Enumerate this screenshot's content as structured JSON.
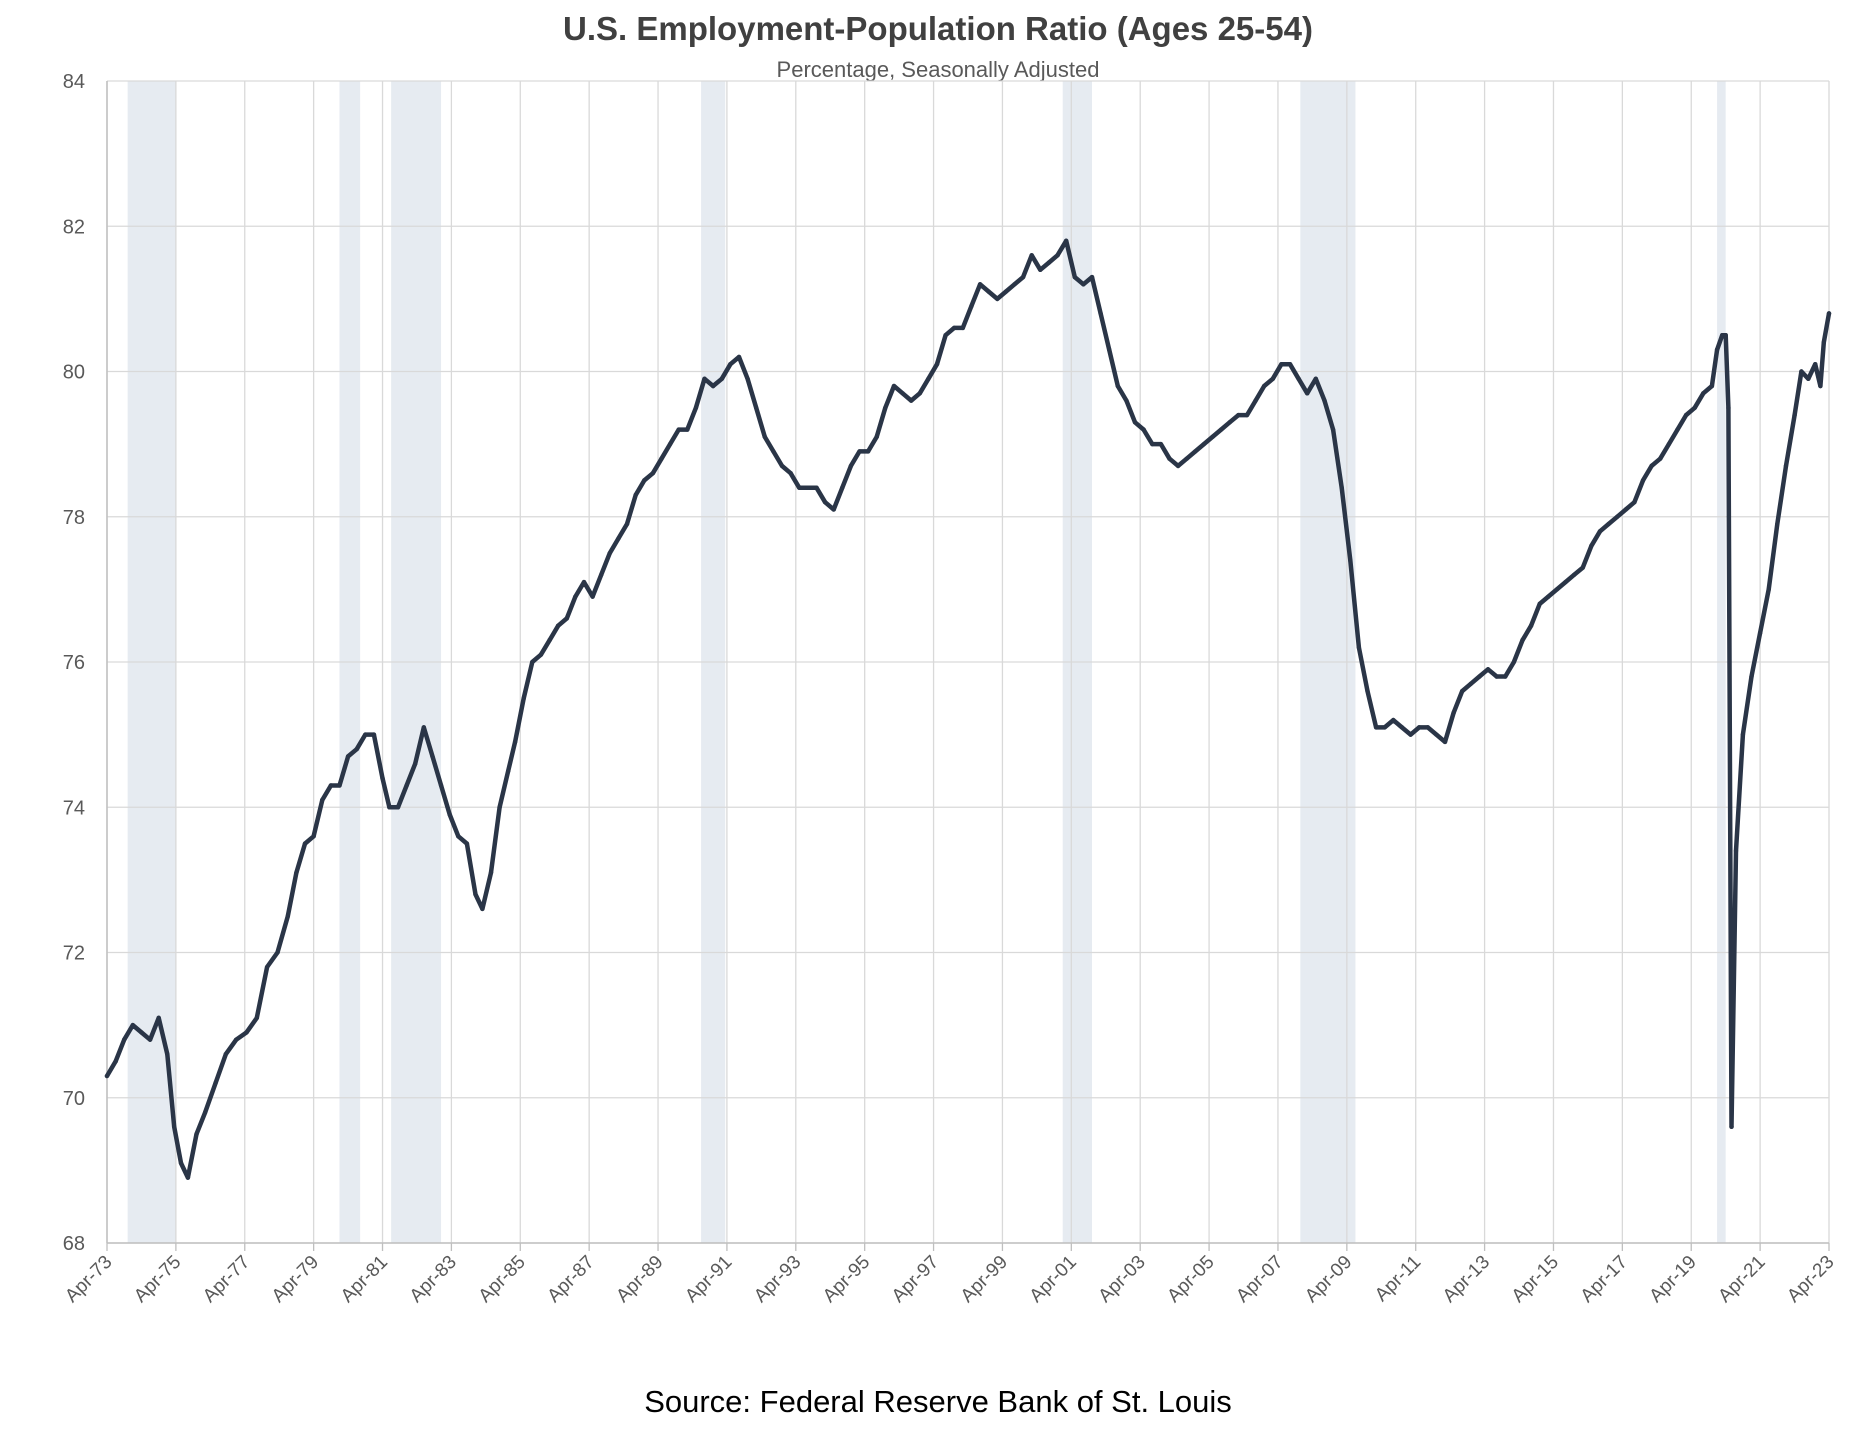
{
  "chart_data": {
    "type": "line",
    "title": "U.S. Employment-Population Ratio (Ages 25-54)",
    "subtitle": "Percentage, Seasonally Adjusted",
    "source": "Source: Federal Reserve Bank of St. Louis",
    "xlabel": "",
    "ylabel": "",
    "xlim": [
      1973.25,
      2023.25
    ],
    "ylim": [
      68,
      84
    ],
    "y_ticks": [
      68,
      70,
      72,
      74,
      76,
      78,
      80,
      82,
      84
    ],
    "x_ticks": [
      {
        "label": "Apr-73",
        "x": 1973.25
      },
      {
        "label": "Apr-75",
        "x": 1975.25
      },
      {
        "label": "Apr-77",
        "x": 1977.25
      },
      {
        "label": "Apr-79",
        "x": 1979.25
      },
      {
        "label": "Apr-81",
        "x": 1981.25
      },
      {
        "label": "Apr-83",
        "x": 1983.25
      },
      {
        "label": "Apr-85",
        "x": 1985.25
      },
      {
        "label": "Apr-87",
        "x": 1987.25
      },
      {
        "label": "Apr-89",
        "x": 1989.25
      },
      {
        "label": "Apr-91",
        "x": 1991.25
      },
      {
        "label": "Apr-93",
        "x": 1993.25
      },
      {
        "label": "Apr-95",
        "x": 1995.25
      },
      {
        "label": "Apr-97",
        "x": 1997.25
      },
      {
        "label": "Apr-99",
        "x": 1999.25
      },
      {
        "label": "Apr-01",
        "x": 2001.25
      },
      {
        "label": "Apr-03",
        "x": 2003.25
      },
      {
        "label": "Apr-05",
        "x": 2005.25
      },
      {
        "label": "Apr-07",
        "x": 2007.25
      },
      {
        "label": "Apr-09",
        "x": 2009.25
      },
      {
        "label": "Apr-11",
        "x": 2011.25
      },
      {
        "label": "Apr-13",
        "x": 2013.25
      },
      {
        "label": "Apr-15",
        "x": 2015.25
      },
      {
        "label": "Apr-17",
        "x": 2017.25
      },
      {
        "label": "Apr-19",
        "x": 2019.25
      },
      {
        "label": "Apr-21",
        "x": 2021.25
      },
      {
        "label": "Apr-23",
        "x": 2023.25
      }
    ],
    "grid": true,
    "recessions": [
      [
        1973.85,
        1975.25
      ],
      [
        1980.0,
        1980.6
      ],
      [
        1981.5,
        1982.95
      ],
      [
        1990.5,
        1991.2
      ],
      [
        2001.0,
        2001.85
      ],
      [
        2007.9,
        2009.5
      ],
      [
        2020.0,
        2020.25
      ]
    ],
    "series": [
      {
        "name": "Employment-Population Ratio (25-54)",
        "color": "#2a3547",
        "points": [
          [
            1973.25,
            70.3
          ],
          [
            1973.5,
            70.5
          ],
          [
            1973.75,
            70.8
          ],
          [
            1974.0,
            71.0
          ],
          [
            1974.25,
            70.9
          ],
          [
            1974.5,
            70.8
          ],
          [
            1974.75,
            71.1
          ],
          [
            1975.0,
            70.6
          ],
          [
            1975.2,
            69.6
          ],
          [
            1975.4,
            69.1
          ],
          [
            1975.6,
            68.9
          ],
          [
            1975.85,
            69.5
          ],
          [
            1976.1,
            69.8
          ],
          [
            1976.4,
            70.2
          ],
          [
            1976.7,
            70.6
          ],
          [
            1977.0,
            70.8
          ],
          [
            1977.3,
            70.9
          ],
          [
            1977.6,
            71.1
          ],
          [
            1977.9,
            71.8
          ],
          [
            1978.2,
            72.0
          ],
          [
            1978.5,
            72.5
          ],
          [
            1978.75,
            73.1
          ],
          [
            1979.0,
            73.5
          ],
          [
            1979.25,
            73.6
          ],
          [
            1979.5,
            74.1
          ],
          [
            1979.75,
            74.3
          ],
          [
            1980.0,
            74.3
          ],
          [
            1980.25,
            74.7
          ],
          [
            1980.5,
            74.8
          ],
          [
            1980.75,
            75.0
          ],
          [
            1981.0,
            75.0
          ],
          [
            1981.25,
            74.4
          ],
          [
            1981.45,
            74.0
          ],
          [
            1981.7,
            74.0
          ],
          [
            1981.95,
            74.3
          ],
          [
            1982.2,
            74.6
          ],
          [
            1982.45,
            75.1
          ],
          [
            1982.7,
            74.7
          ],
          [
            1982.95,
            74.3
          ],
          [
            1983.2,
            73.9
          ],
          [
            1983.45,
            73.6
          ],
          [
            1983.7,
            73.5
          ],
          [
            1983.95,
            72.8
          ],
          [
            1984.15,
            72.6
          ],
          [
            1984.4,
            73.1
          ],
          [
            1984.65,
            74.0
          ],
          [
            1984.9,
            74.5
          ],
          [
            1985.1,
            74.9
          ],
          [
            1985.35,
            75.5
          ],
          [
            1985.6,
            76.0
          ],
          [
            1985.85,
            76.1
          ],
          [
            1986.1,
            76.3
          ],
          [
            1986.35,
            76.5
          ],
          [
            1986.6,
            76.6
          ],
          [
            1986.85,
            76.9
          ],
          [
            1987.1,
            77.1
          ],
          [
            1987.35,
            76.9
          ],
          [
            1987.6,
            77.2
          ],
          [
            1987.85,
            77.5
          ],
          [
            1988.1,
            77.7
          ],
          [
            1988.35,
            77.9
          ],
          [
            1988.6,
            78.3
          ],
          [
            1988.85,
            78.5
          ],
          [
            1989.1,
            78.6
          ],
          [
            1989.35,
            78.8
          ],
          [
            1989.6,
            79.0
          ],
          [
            1989.85,
            79.2
          ],
          [
            1990.1,
            79.2
          ],
          [
            1990.35,
            79.5
          ],
          [
            1990.6,
            79.9
          ],
          [
            1990.85,
            79.8
          ],
          [
            1991.1,
            79.9
          ],
          [
            1991.35,
            80.1
          ],
          [
            1991.6,
            80.2
          ],
          [
            1991.85,
            79.9
          ],
          [
            1992.1,
            79.5
          ],
          [
            1992.35,
            79.1
          ],
          [
            1992.6,
            78.9
          ],
          [
            1992.85,
            78.7
          ],
          [
            1993.1,
            78.6
          ],
          [
            1993.35,
            78.4
          ],
          [
            1993.6,
            78.4
          ],
          [
            1993.85,
            78.4
          ],
          [
            1994.1,
            78.2
          ],
          [
            1994.35,
            78.1
          ],
          [
            1994.6,
            78.4
          ],
          [
            1994.85,
            78.7
          ],
          [
            1995.1,
            78.9
          ],
          [
            1995.35,
            78.9
          ],
          [
            1995.6,
            79.1
          ],
          [
            1995.85,
            79.5
          ],
          [
            1996.1,
            79.8
          ],
          [
            1996.35,
            79.7
          ],
          [
            1996.6,
            79.6
          ],
          [
            1996.85,
            79.7
          ],
          [
            1997.1,
            79.9
          ],
          [
            1997.35,
            80.1
          ],
          [
            1997.6,
            80.5
          ],
          [
            1997.85,
            80.6
          ],
          [
            1998.1,
            80.6
          ],
          [
            1998.35,
            80.9
          ],
          [
            1998.6,
            81.2
          ],
          [
            1998.85,
            81.1
          ],
          [
            1999.1,
            81.0
          ],
          [
            1999.35,
            81.1
          ],
          [
            1999.6,
            81.2
          ],
          [
            1999.85,
            81.3
          ],
          [
            2000.1,
            81.6
          ],
          [
            2000.35,
            81.4
          ],
          [
            2000.6,
            81.5
          ],
          [
            2000.85,
            81.6
          ],
          [
            2001.1,
            81.8
          ],
          [
            2001.35,
            81.3
          ],
          [
            2001.6,
            81.2
          ],
          [
            2001.85,
            81.3
          ],
          [
            2002.1,
            80.8
          ],
          [
            2002.35,
            80.3
          ],
          [
            2002.6,
            79.8
          ],
          [
            2002.85,
            79.6
          ],
          [
            2003.1,
            79.3
          ],
          [
            2003.35,
            79.2
          ],
          [
            2003.6,
            79.0
          ],
          [
            2003.85,
            79.0
          ],
          [
            2004.1,
            78.8
          ],
          [
            2004.35,
            78.7
          ],
          [
            2004.6,
            78.8
          ],
          [
            2004.85,
            78.9
          ],
          [
            2005.1,
            79.0
          ],
          [
            2005.35,
            79.1
          ],
          [
            2005.6,
            79.2
          ],
          [
            2005.85,
            79.3
          ],
          [
            2006.1,
            79.4
          ],
          [
            2006.35,
            79.4
          ],
          [
            2006.6,
            79.6
          ],
          [
            2006.85,
            79.8
          ],
          [
            2007.1,
            79.9
          ],
          [
            2007.35,
            80.1
          ],
          [
            2007.6,
            80.1
          ],
          [
            2007.85,
            79.9
          ],
          [
            2008.1,
            79.7
          ],
          [
            2008.35,
            79.9
          ],
          [
            2008.6,
            79.6
          ],
          [
            2008.85,
            79.2
          ],
          [
            2009.1,
            78.4
          ],
          [
            2009.35,
            77.4
          ],
          [
            2009.6,
            76.2
          ],
          [
            2009.85,
            75.6
          ],
          [
            2010.1,
            75.1
          ],
          [
            2010.35,
            75.1
          ],
          [
            2010.6,
            75.2
          ],
          [
            2010.85,
            75.1
          ],
          [
            2011.1,
            75.0
          ],
          [
            2011.35,
            75.1
          ],
          [
            2011.6,
            75.1
          ],
          [
            2011.85,
            75.0
          ],
          [
            2012.1,
            74.9
          ],
          [
            2012.35,
            75.3
          ],
          [
            2012.6,
            75.6
          ],
          [
            2012.85,
            75.7
          ],
          [
            2013.1,
            75.8
          ],
          [
            2013.35,
            75.9
          ],
          [
            2013.6,
            75.8
          ],
          [
            2013.85,
            75.8
          ],
          [
            2014.1,
            76.0
          ],
          [
            2014.35,
            76.3
          ],
          [
            2014.6,
            76.5
          ],
          [
            2014.85,
            76.8
          ],
          [
            2015.1,
            76.9
          ],
          [
            2015.35,
            77.0
          ],
          [
            2015.6,
            77.1
          ],
          [
            2015.85,
            77.2
          ],
          [
            2016.1,
            77.3
          ],
          [
            2016.35,
            77.6
          ],
          [
            2016.6,
            77.8
          ],
          [
            2016.85,
            77.9
          ],
          [
            2017.1,
            78.0
          ],
          [
            2017.35,
            78.1
          ],
          [
            2017.6,
            78.2
          ],
          [
            2017.85,
            78.5
          ],
          [
            2018.1,
            78.7
          ],
          [
            2018.35,
            78.8
          ],
          [
            2018.6,
            79.0
          ],
          [
            2018.85,
            79.2
          ],
          [
            2019.1,
            79.4
          ],
          [
            2019.35,
            79.5
          ],
          [
            2019.6,
            79.7
          ],
          [
            2019.85,
            79.8
          ],
          [
            2020.0,
            80.3
          ],
          [
            2020.15,
            80.5
          ],
          [
            2020.25,
            80.5
          ],
          [
            2020.33,
            79.5
          ],
          [
            2020.42,
            69.6
          ],
          [
            2020.55,
            73.4
          ],
          [
            2020.75,
            75.0
          ],
          [
            2021.0,
            75.8
          ],
          [
            2021.25,
            76.4
          ],
          [
            2021.5,
            77.0
          ],
          [
            2021.75,
            77.9
          ],
          [
            2022.0,
            78.7
          ],
          [
            2022.25,
            79.4
          ],
          [
            2022.45,
            80.0
          ],
          [
            2022.65,
            79.9
          ],
          [
            2022.85,
            80.1
          ],
          [
            2023.0,
            79.8
          ],
          [
            2023.1,
            80.4
          ],
          [
            2023.25,
            80.8
          ]
        ]
      }
    ]
  }
}
